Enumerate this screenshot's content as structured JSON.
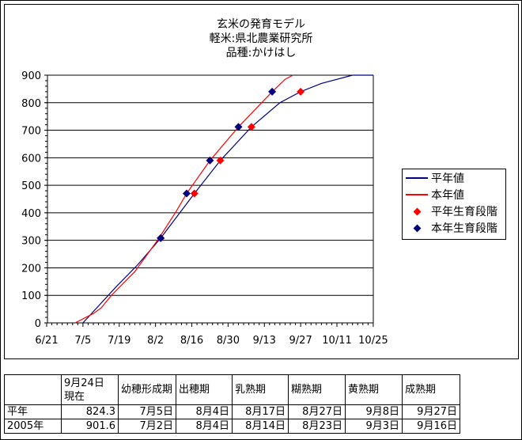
{
  "chart_data": {
    "type": "line",
    "title": [
      "玄米の発育モデル",
      "軽米:県北農業研究所",
      "品種:かけはし"
    ],
    "xlabel": "",
    "ylabel": "",
    "ylim": [
      0,
      900
    ],
    "yticks": [
      0,
      100,
      200,
      300,
      400,
      500,
      600,
      700,
      800,
      900
    ],
    "xlim": [
      "6/21",
      "10/25"
    ],
    "xtick_labels": [
      "6/21",
      "7/5",
      "7/19",
      "8/2",
      "8/16",
      "8/30",
      "9/13",
      "9/27",
      "10/11",
      "10/25"
    ],
    "grid": "horizontal",
    "legend_position": "right",
    "series": [
      {
        "name": "平年値",
        "type": "line",
        "color": "#000080",
        "points": [
          [
            "7/5",
            0
          ],
          [
            "7/18",
            133
          ],
          [
            "7/26",
            210
          ],
          [
            "8/4",
            308
          ],
          [
            "8/17",
            470
          ],
          [
            "8/27",
            590
          ],
          [
            "9/8",
            712
          ],
          [
            "9/19",
            800
          ],
          [
            "9/27",
            840
          ],
          [
            "10/5",
            870
          ],
          [
            "10/17",
            900
          ],
          [
            "10/25",
            900
          ]
        ]
      },
      {
        "name": "本年値",
        "type": "line",
        "color": "#ff0000",
        "points": [
          [
            "7/2",
            0
          ],
          [
            "7/9",
            34
          ],
          [
            "7/12",
            54
          ],
          [
            "7/16",
            100
          ],
          [
            "7/25",
            186
          ],
          [
            "8/3",
            303
          ],
          [
            "8/10",
            405
          ],
          [
            "8/14",
            470
          ],
          [
            "8/23",
            590
          ],
          [
            "9/3",
            712
          ],
          [
            "9/16",
            840
          ],
          [
            "9/21",
            885
          ],
          [
            "9/24",
            900
          ]
        ]
      },
      {
        "name": "平年生育段階",
        "type": "scatter",
        "color": "#ff0000",
        "points": [
          [
            "8/4",
            308
          ],
          [
            "8/17",
            470
          ],
          [
            "8/27",
            590
          ],
          [
            "9/8",
            712
          ],
          [
            "9/27",
            840
          ]
        ]
      },
      {
        "name": "本年生育段階",
        "type": "scatter",
        "color": "#000080",
        "points": [
          [
            "8/4",
            308
          ],
          [
            "8/14",
            470
          ],
          [
            "8/23",
            590
          ],
          [
            "9/3",
            712
          ],
          [
            "9/16",
            840
          ]
        ]
      }
    ]
  },
  "table": {
    "headers": [
      "",
      "9月24日\n現在",
      "幼穂形成期",
      "出穂期",
      "乳熟期",
      "糊熟期",
      "黄熟期",
      "成熟期"
    ],
    "rows": [
      [
        "平年",
        "824.3",
        "7月5日",
        "8月4日",
        "8月17日",
        "8月27日",
        "9月8日",
        "9月27日"
      ],
      [
        "2005年",
        "901.6",
        "7月2日",
        "8月4日",
        "8月14日",
        "8月23日",
        "9月3日",
        "9月16日"
      ]
    ]
  }
}
